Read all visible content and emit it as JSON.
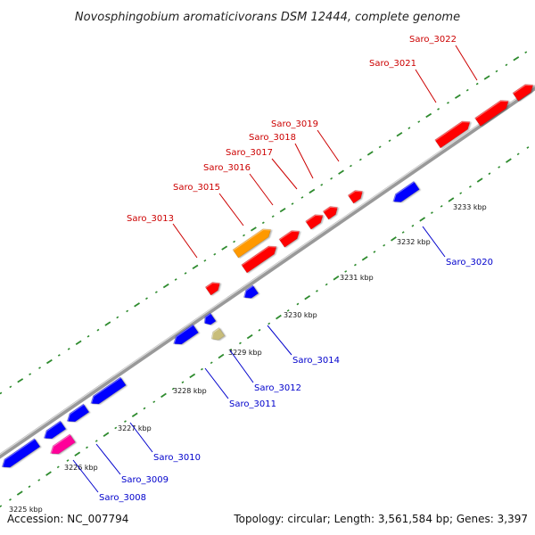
{
  "title": "Novosphingobium aromaticivorans DSM 12444, complete genome",
  "accession": "Accession: NC_007794",
  "topology": "Topology: circular; Length: 3,561,584 bp; Genes: 3,397",
  "colors": {
    "forward": "#ff0000",
    "reverse": "#0000ff",
    "orange": "#ff9900",
    "magenta": "#ff0099",
    "khaki": "#c8bd7a",
    "backbone": "#888888",
    "tick_green": "#2e8b2e",
    "forward_label": "#cc0000",
    "reverse_label": "#0000cc"
  },
  "tick_labels": [
    "3225 kbp",
    "3226 kbp",
    "3227 kbp",
    "3228 kbp",
    "3229 kbp",
    "3230 kbp",
    "3231 kbp",
    "3232 kbp",
    "3233 kbp"
  ],
  "genes": [
    {
      "label": "Saro_3008",
      "strand": "reverse",
      "color": "magenta"
    },
    {
      "label": "Saro_3009",
      "strand": "reverse",
      "color": "reverse"
    },
    {
      "label": "Saro_3010",
      "strand": "reverse",
      "color": "reverse"
    },
    {
      "label": "Saro_3011",
      "strand": "reverse",
      "color": "reverse"
    },
    {
      "label": "Saro_3012",
      "strand": "reverse",
      "color": "khaki"
    },
    {
      "label": "Saro_3013",
      "strand": "forward",
      "color": "forward"
    },
    {
      "label": "Saro_3014",
      "strand": "reverse",
      "color": "reverse"
    },
    {
      "label": "Saro_3015",
      "strand": "forward",
      "color": "orange"
    },
    {
      "label": "Saro_3016",
      "strand": "forward",
      "color": "forward"
    },
    {
      "label": "Saro_3017",
      "strand": "forward",
      "color": "forward"
    },
    {
      "label": "Saro_3018",
      "strand": "forward",
      "color": "forward"
    },
    {
      "label": "Saro_3019",
      "strand": "forward",
      "color": "forward"
    },
    {
      "label": "Saro_3020",
      "strand": "reverse",
      "color": "reverse"
    },
    {
      "label": "Saro_3021",
      "strand": "forward",
      "color": "forward"
    },
    {
      "label": "Saro_3022",
      "strand": "forward",
      "color": "forward"
    }
  ]
}
